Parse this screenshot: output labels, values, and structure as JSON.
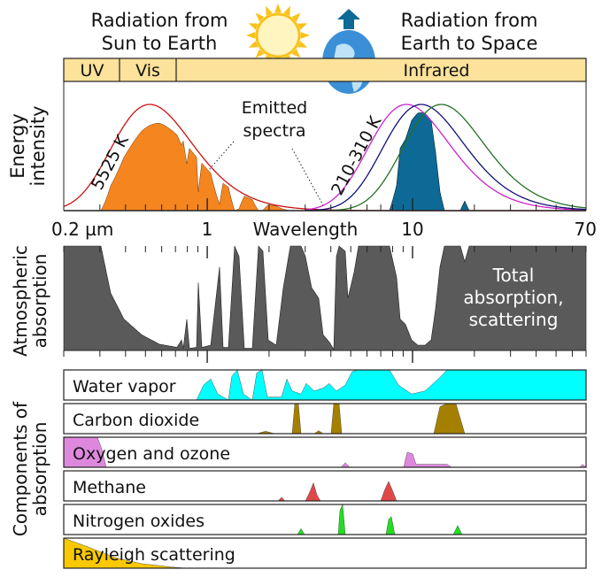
{
  "header": {
    "left_title": [
      "Radiation from",
      "Sun to Earth"
    ],
    "right_title": [
      "Radiation from",
      "Earth to Space"
    ]
  },
  "bands": {
    "uv": "UV",
    "vis": "Vis",
    "ir": "Infrared"
  },
  "energy_panel": {
    "ylabel": [
      "Energy",
      "intensity"
    ],
    "sun_temp": "5525 K",
    "earth_temp": "210-310 K",
    "annotation": [
      "Emitted",
      "spectra"
    ]
  },
  "axis": {
    "label": "Wavelength",
    "ticks": [
      "0.2 µm",
      "1",
      "10",
      "70"
    ],
    "scale": "log",
    "range_um": [
      0.2,
      70
    ]
  },
  "absorption_panel": {
    "ylabel": [
      "Atmospheric",
      "absorption"
    ],
    "note": [
      "Total",
      "absorption,",
      "scattering"
    ]
  },
  "components": {
    "ylabel": [
      "Components of",
      "absorption"
    ],
    "items": [
      {
        "label": "Water vapor",
        "color": "#00ffff"
      },
      {
        "label": "Carbon dioxide",
        "color": "#a58000"
      },
      {
        "label": "Oxygen and ozone",
        "color": "#dd88dd"
      },
      {
        "label": "Methane",
        "color": "#e04848"
      },
      {
        "label": "Nitrogen oxides",
        "color": "#22dd22"
      },
      {
        "label": "Rayleigh scattering",
        "color": "#f8c800"
      }
    ]
  },
  "colors": {
    "sun_fill": "#f5851f",
    "earth_fill": "#0d6a96",
    "sun_curve": "#cc1111",
    "absorption": "#5a5a5a",
    "band": "#fce29a"
  }
}
